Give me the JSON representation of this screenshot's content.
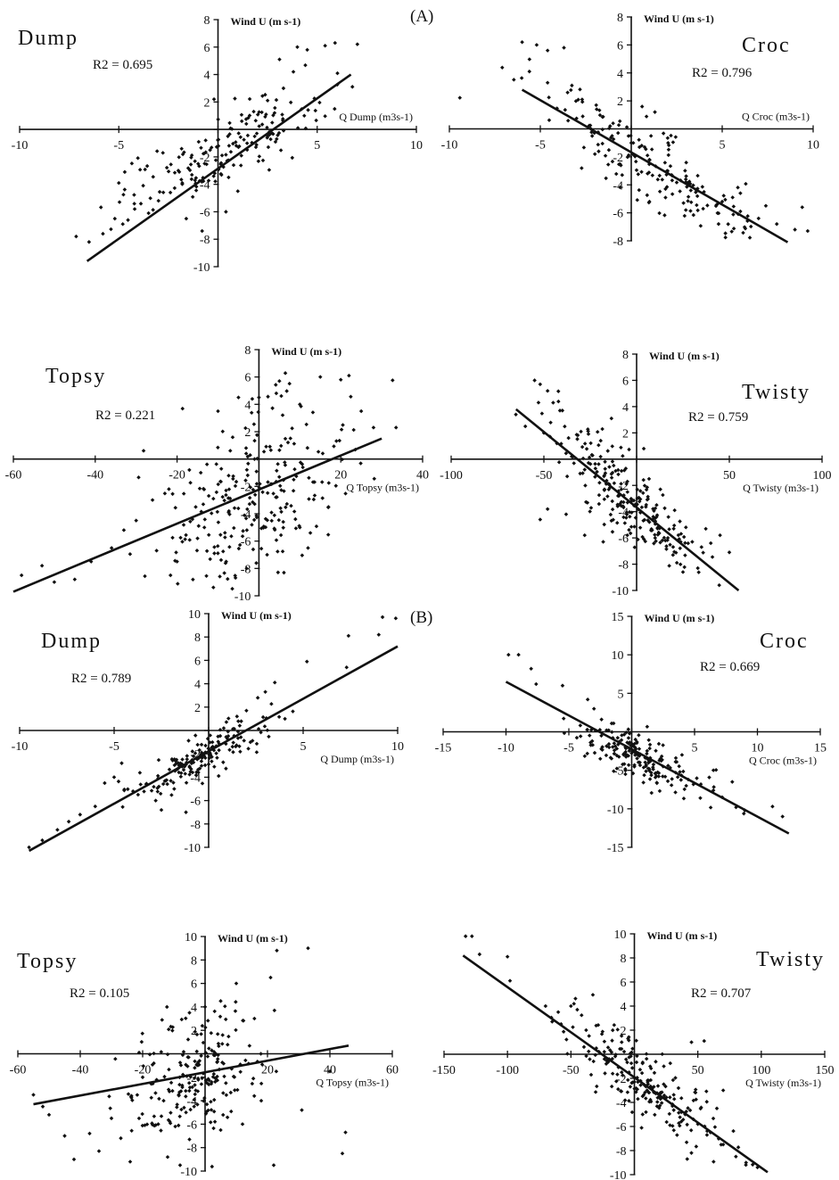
{
  "figure": {
    "panel_a_label": "(A)",
    "panel_b_label": "(B)",
    "ink_color": "#111111",
    "point_color": "#111111"
  },
  "chart_data": [
    {
      "type": "scatter",
      "panel": "A",
      "title": "Dump",
      "r2": "R2 = 0.695",
      "xlabel": "Q Dump (m3s-1)",
      "ylabel": "Wind U (m s-1)",
      "xlim": [
        -10,
        10
      ],
      "ylim": [
        -10,
        8
      ],
      "xticks": [
        -10,
        -5,
        0,
        5,
        10
      ],
      "yticks": [
        -10,
        -8,
        -6,
        -4,
        -2,
        0,
        2,
        4,
        6,
        8
      ],
      "fit": {
        "x": [
          -6.6,
          6.7
        ],
        "y": [
          -9.6,
          4.0
        ]
      },
      "cloud": {
        "center": [
          0,
          -1.7
        ],
        "spread": [
          2.6,
          2.2
        ],
        "count": 170,
        "corr": 0.83
      },
      "points": [
        [
          -6.5,
          -8.2
        ],
        [
          -5.8,
          -7.6
        ],
        [
          -5.2,
          -6.5
        ],
        [
          -4.8,
          -6.9
        ],
        [
          -4.2,
          -5.8
        ],
        [
          -3.5,
          -6.1
        ],
        [
          -3.0,
          -5.2
        ],
        [
          -2.4,
          -4.6
        ],
        [
          -1.8,
          -3.9
        ],
        [
          -1.0,
          -2.5
        ],
        [
          -0.4,
          -1.5
        ],
        [
          0.5,
          -0.5
        ],
        [
          1.2,
          0.6
        ],
        [
          1.8,
          1.3
        ],
        [
          2.5,
          2.1
        ],
        [
          3.3,
          3.0
        ],
        [
          3.8,
          4.2
        ],
        [
          4.5,
          5.8
        ],
        [
          5.4,
          6.1
        ],
        [
          5.9,
          6.3
        ],
        [
          4.0,
          6.0
        ],
        [
          3.1,
          5.1
        ],
        [
          -1.6,
          -6.5
        ],
        [
          -0.8,
          -7.4
        ],
        [
          0.4,
          -6.0
        ],
        [
          1.0,
          -4.5
        ],
        [
          -5.0,
          -3.9
        ],
        [
          -4.7,
          -3.1
        ],
        [
          -2.0,
          -3.0
        ],
        [
          -0.2,
          2.2
        ]
      ]
    },
    {
      "type": "scatter",
      "panel": "A",
      "title": "Croc",
      "r2": "R2 = 0.796",
      "xlabel": "Q Croc (m3s-1)",
      "ylabel": "Wind U (m s-1)",
      "xlim": [
        -10,
        10
      ],
      "ylim": [
        -8,
        8
      ],
      "xticks": [
        -10,
        -5,
        0,
        5,
        10
      ],
      "yticks": [
        -8,
        -6,
        -4,
        -2,
        0,
        2,
        4,
        6,
        8
      ],
      "fit": {
        "x": [
          -6.0,
          8.6
        ],
        "y": [
          2.8,
          -8.1
        ]
      },
      "cloud": {
        "center": [
          1.0,
          -2.8
        ],
        "spread": [
          3.2,
          3.0
        ],
        "count": 180,
        "corr": -0.89
      },
      "points": [
        [
          -6.0,
          6.2
        ],
        [
          -5.2,
          6.0
        ],
        [
          -4.6,
          5.6
        ],
        [
          -3.7,
          5.8
        ],
        [
          -5.6,
          4.1
        ],
        [
          -4.6,
          3.3
        ],
        [
          -3.5,
          2.6
        ],
        [
          -2.7,
          2.1
        ],
        [
          -1.9,
          1.4
        ],
        [
          -1.0,
          0.4
        ],
        [
          0.0,
          -1.0
        ],
        [
          1.0,
          -2.2
        ],
        [
          2.0,
          -3.0
        ],
        [
          3.0,
          -3.6
        ],
        [
          4.0,
          -4.5
        ],
        [
          5.0,
          -5.2
        ],
        [
          6.0,
          -5.9
        ],
        [
          7.0,
          -6.4
        ],
        [
          8.0,
          -6.8
        ],
        [
          9.0,
          -7.2
        ],
        [
          9.7,
          -7.3
        ],
        [
          9.4,
          -5.6
        ],
        [
          7.4,
          -5.5
        ],
        [
          6.0,
          -4.6
        ],
        [
          4.8,
          -6.8
        ],
        [
          3.0,
          -5.8
        ],
        [
          1.0,
          -5.2
        ],
        [
          -0.5,
          -3.3
        ],
        [
          -2.0,
          -1.8
        ],
        [
          1.3,
          1.2
        ]
      ]
    },
    {
      "type": "scatter",
      "panel": "A",
      "title": "Topsy",
      "r2": "R2 = 0.221",
      "xlabel": "Q Topsy (m3s-1)",
      "ylabel": "Wind U (m s-1)",
      "xlim": [
        -60,
        40
      ],
      "ylim": [
        -10,
        8
      ],
      "xticks": [
        -60,
        -40,
        -20,
        0,
        20,
        40
      ],
      "yticks": [
        -10,
        -8,
        -6,
        -4,
        -2,
        0,
        2,
        4,
        6,
        8
      ],
      "fit": {
        "x": [
          -60,
          30
        ],
        "y": [
          -9.7,
          1.5
        ]
      },
      "cloud": {
        "center": [
          -1.0,
          -2.5
        ],
        "spread": [
          11,
          3.5
        ],
        "count": 250,
        "corr": 0.45
      },
      "points": [
        [
          -58,
          -8.5
        ],
        [
          -53,
          -7.8
        ],
        [
          -50,
          -9.0
        ],
        [
          -45,
          -8.8
        ],
        [
          -41,
          -7.5
        ],
        [
          -36,
          -6.5
        ],
        [
          -33,
          -5.2
        ],
        [
          -30,
          -4.5
        ],
        [
          -26,
          -3.0
        ],
        [
          -22,
          -2.2
        ],
        [
          -17,
          -0.8
        ],
        [
          -10,
          3.5
        ],
        [
          -5,
          4.5
        ],
        [
          0,
          4.5
        ],
        [
          5,
          5.7
        ],
        [
          10,
          4.0
        ],
        [
          15,
          6.0
        ],
        [
          20,
          5.8
        ],
        [
          22,
          6.1
        ],
        [
          25,
          3.5
        ],
        [
          28,
          2.3
        ],
        [
          17,
          -3.5
        ],
        [
          10,
          -5.0
        ],
        [
          2,
          -7.0
        ],
        [
          -8,
          -7.5
        ],
        [
          -20,
          -7.5
        ],
        [
          -25,
          -6.7
        ],
        [
          -15,
          -5.8
        ],
        [
          -3,
          -8.0
        ],
        [
          12,
          -6.5
        ]
      ]
    },
    {
      "type": "scatter",
      "panel": "A",
      "title": "Twisty",
      "r2": "R2 = 0.759",
      "xlabel": "Q Twisty (m3s-1)",
      "ylabel": "Wind U (m s-1)",
      "xlim": [
        -100,
        100
      ],
      "ylim": [
        -10,
        8
      ],
      "xticks": [
        -100,
        -50,
        0,
        50,
        100
      ],
      "yticks": [
        -10,
        -8,
        -6,
        -4,
        -2,
        0,
        2,
        4,
        6,
        8
      ],
      "fit": {
        "x": [
          -65,
          55
        ],
        "y": [
          3.8,
          -10.0
        ]
      },
      "cloud": {
        "center": [
          -5,
          -2.8
        ],
        "spread": [
          22,
          3.3
        ],
        "count": 230,
        "corr": -0.87
      },
      "points": [
        [
          -55,
          6.0
        ],
        [
          -52,
          5.7
        ],
        [
          -48,
          5.2
        ],
        [
          -45,
          4.3
        ],
        [
          -40,
          3.7
        ],
        [
          -60,
          2.5
        ],
        [
          -50,
          2.0
        ],
        [
          -43,
          1.2
        ],
        [
          -35,
          0.2
        ],
        [
          -28,
          -0.8
        ],
        [
          -20,
          -1.8
        ],
        [
          -10,
          -2.8
        ],
        [
          0,
          -3.5
        ],
        [
          10,
          -4.5
        ],
        [
          20,
          -5.3
        ],
        [
          30,
          -6.3
        ],
        [
          35,
          -6.7
        ],
        [
          40,
          -6.4
        ],
        [
          45,
          -5.8
        ],
        [
          50,
          -7.1
        ],
        [
          33,
          -8.3
        ],
        [
          25,
          -8.6
        ],
        [
          10,
          -6.0
        ],
        [
          -5,
          -5.8
        ],
        [
          -18,
          -6.3
        ],
        [
          -28,
          -5.8
        ],
        [
          -38,
          -4.2
        ],
        [
          -48,
          -3.8
        ],
        [
          -52,
          -4.6
        ],
        [
          -30,
          2.1
        ]
      ]
    },
    {
      "type": "scatter",
      "panel": "B",
      "title": "Dump",
      "r2": "R2 = 0.789",
      "xlabel": "Q Dump (m3s-1)",
      "ylabel": "Wind U (m s-1)",
      "xlim": [
        -10,
        10
      ],
      "ylim": [
        -10,
        10
      ],
      "xticks": [
        -10,
        -5,
        0,
        5,
        10
      ],
      "yticks": [
        -10,
        -8,
        -6,
        -4,
        -2,
        0,
        2,
        4,
        6,
        8,
        10
      ],
      "fit": {
        "x": [
          -9.5,
          10
        ],
        "y": [
          -10.3,
          7.2
        ]
      },
      "cloud": {
        "center": [
          -0.5,
          -2.5
        ],
        "spread": [
          1.8,
          1.6
        ],
        "count": 160,
        "corr": 0.8
      },
      "points": [
        [
          -9.5,
          -10
        ],
        [
          -8.8,
          -9.4
        ],
        [
          -8.0,
          -8.5
        ],
        [
          -7.4,
          -7.8
        ],
        [
          -6.8,
          -7.2
        ],
        [
          -6.0,
          -6.5
        ],
        [
          -5.5,
          -4.5
        ],
        [
          -5.0,
          -4.0
        ],
        [
          -4.6,
          -2.8
        ],
        [
          -4.0,
          -5.2
        ],
        [
          -3.3,
          -4.6
        ],
        [
          -2.8,
          -6.0
        ],
        [
          -2.0,
          -4.3
        ],
        [
          -1.5,
          -3.0
        ],
        [
          -0.8,
          -2.2
        ],
        [
          0.2,
          -1.0
        ],
        [
          0.8,
          0.2
        ],
        [
          1.5,
          1.2
        ],
        [
          2.0,
          1.7
        ],
        [
          2.6,
          2.8
        ],
        [
          3.0,
          3.3
        ],
        [
          3.5,
          4.1
        ],
        [
          5.2,
          5.9
        ],
        [
          7.3,
          5.4
        ],
        [
          7.4,
          8.1
        ],
        [
          9.0,
          8.2
        ],
        [
          9.2,
          9.7
        ],
        [
          9.9,
          9.6
        ],
        [
          -2.5,
          -6.8
        ],
        [
          -1.2,
          -7.0
        ]
      ]
    },
    {
      "type": "scatter",
      "panel": "B",
      "title": "Croc",
      "r2": "R2 = 0.669",
      "xlabel": "Q Croc (m3s-1)",
      "ylabel": "Wind U (m s-1)",
      "xlim": [
        -15,
        15
      ],
      "ylim": [
        -15,
        15
      ],
      "xticks": [
        -15,
        -10,
        -5,
        0,
        5,
        10,
        15
      ],
      "yticks": [
        -15,
        -10,
        -5,
        0,
        5,
        10,
        15
      ],
      "fit": {
        "x": [
          -10,
          12.5
        ],
        "y": [
          6.5,
          -13.2
        ]
      },
      "cloud": {
        "center": [
          0.5,
          -3.2
        ],
        "spread": [
          2.6,
          2.4
        ],
        "count": 170,
        "corr": -0.78
      },
      "points": [
        [
          -9.8,
          10.0
        ],
        [
          -9.0,
          10.0
        ],
        [
          -8.0,
          8.2
        ],
        [
          -7.6,
          6.2
        ],
        [
          -5.5,
          6.0
        ],
        [
          -3.5,
          4.2
        ],
        [
          -3.0,
          3.0
        ],
        [
          -2.4,
          1.6
        ],
        [
          -2.0,
          0.2
        ],
        [
          -1.5,
          -0.8
        ],
        [
          -0.5,
          -2.0
        ],
        [
          0.5,
          -3.0
        ],
        [
          1.5,
          -3.8
        ],
        [
          2.5,
          -4.5
        ],
        [
          3.5,
          -5.3
        ],
        [
          4.5,
          -6.2
        ],
        [
          5.5,
          -6.8
        ],
        [
          6.5,
          -7.6
        ],
        [
          7.2,
          -8.5
        ],
        [
          8.3,
          -9.8
        ],
        [
          9.0,
          -10.2
        ],
        [
          11.2,
          -9.7
        ],
        [
          12.0,
          -11.0
        ],
        [
          4.0,
          -3.0
        ],
        [
          6.5,
          -5.0
        ],
        [
          8.0,
          -6.5
        ],
        [
          2.0,
          -6.6
        ],
        [
          -0.5,
          -5.5
        ],
        [
          -2.5,
          -3.5
        ],
        [
          0.3,
          -1.0
        ]
      ]
    },
    {
      "type": "scatter",
      "panel": "B",
      "title": "Topsy",
      "r2": "R2 = 0.105",
      "xlabel": "Q Topsy (m3s-1)",
      "ylabel": "Wind U (m s-1)",
      "xlim": [
        -60,
        60
      ],
      "ylim": [
        -10,
        10
      ],
      "xticks": [
        -60,
        -40,
        -20,
        0,
        20,
        40,
        60
      ],
      "yticks": [
        -10,
        -8,
        -6,
        -4,
        -2,
        0,
        2,
        4,
        6,
        8,
        10
      ],
      "fit": {
        "x": [
          -55,
          46
        ],
        "y": [
          -4.3,
          0.7
        ]
      },
      "cloud": {
        "center": [
          -3,
          -1.8
        ],
        "spread": [
          11,
          2.9
        ],
        "count": 210,
        "corr": 0.32
      },
      "points": [
        [
          -55,
          -3.5
        ],
        [
          -52,
          -4.5
        ],
        [
          -50,
          -5.2
        ],
        [
          -45,
          -7.0
        ],
        [
          -42,
          -9.0
        ],
        [
          -37,
          -6.8
        ],
        [
          -34,
          -8.3
        ],
        [
          -30,
          -5.5
        ],
        [
          -27,
          -7.2
        ],
        [
          -24,
          -9.2
        ],
        [
          -20,
          -2.0
        ],
        [
          -12,
          -8.8
        ],
        [
          -8,
          -9.5
        ],
        [
          -5,
          3.5
        ],
        [
          0,
          4.0
        ],
        [
          5,
          4.5
        ],
        [
          10,
          6.0
        ],
        [
          21,
          6.5
        ],
        [
          23,
          8.8
        ],
        [
          33,
          9.0
        ],
        [
          31,
          -4.8
        ],
        [
          44,
          -8.5
        ],
        [
          45,
          -6.7
        ],
        [
          40,
          -1.5
        ],
        [
          22,
          -9.5
        ],
        [
          12,
          -6.0
        ],
        [
          5,
          -6.5
        ],
        [
          -15,
          -6.0
        ],
        [
          -5,
          -7.3
        ],
        [
          18,
          -4.0
        ]
      ]
    },
    {
      "type": "scatter",
      "panel": "B",
      "title": "Twisty",
      "r2": "R2 = 0.707",
      "xlabel": "Q Twisty (m3s-1)",
      "ylabel": "Wind U (m s-1)",
      "xlim": [
        -150,
        150
      ],
      "ylim": [
        -10,
        10
      ],
      "xticks": [
        -150,
        -100,
        -50,
        0,
        50,
        100,
        150
      ],
      "yticks": [
        -10,
        -8,
        -6,
        -4,
        -2,
        0,
        2,
        4,
        6,
        8,
        10
      ],
      "fit": {
        "x": [
          -135,
          105
        ],
        "y": [
          8.2,
          -9.8
        ]
      },
      "cloud": {
        "center": [
          10,
          -2.5
        ],
        "spread": [
          28,
          2.6
        ],
        "count": 200,
        "corr": -0.8
      },
      "points": [
        [
          -133,
          9.8
        ],
        [
          -128,
          9.8
        ],
        [
          -122,
          8.3
        ],
        [
          -100,
          8.1
        ],
        [
          -98,
          6.1
        ],
        [
          -70,
          4.0
        ],
        [
          -60,
          3.5
        ],
        [
          -50,
          4.0
        ],
        [
          -45,
          3.7
        ],
        [
          -38,
          2.0
        ],
        [
          -30,
          0.5
        ],
        [
          -20,
          -0.5
        ],
        [
          -10,
          -1.5
        ],
        [
          0,
          -2.3
        ],
        [
          10,
          -3.0
        ],
        [
          20,
          -3.5
        ],
        [
          30,
          -4.3
        ],
        [
          40,
          -5.0
        ],
        [
          50,
          -5.8
        ],
        [
          60,
          -6.5
        ],
        [
          70,
          -7.5
        ],
        [
          80,
          -8.5
        ],
        [
          88,
          -9.0
        ],
        [
          97,
          -9.4
        ],
        [
          45,
          1.0
        ],
        [
          55,
          1.1
        ],
        [
          -10,
          1.0
        ],
        [
          -5,
          1.3
        ],
        [
          70,
          -3.0
        ],
        [
          65,
          -4.5
        ]
      ]
    }
  ]
}
